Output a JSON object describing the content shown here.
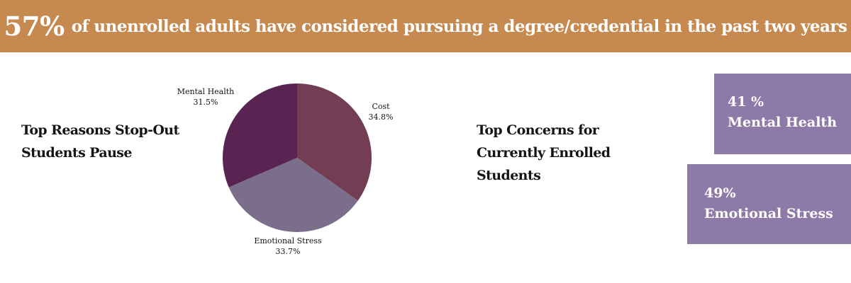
{
  "colors": {
    "banner": "#c68a50",
    "card": "#8d7aa9",
    "slices": [
      "#733d54",
      "#7a6e8a",
      "#5a2452"
    ]
  },
  "banner": {
    "big": "57%",
    "rest": "of unenrolled adults have considered pursuing a degree/credential in the past two years"
  },
  "reasons_heading": [
    "Top Reasons Stop-Out",
    "Students Pause"
  ],
  "concerns_heading": [
    "Top Concerns for",
    "Currently Enrolled",
    "Students"
  ],
  "cards": [
    {
      "value": "41 %",
      "label": "Mental Health"
    },
    {
      "value": "49%",
      "label": "Emotional Stress"
    }
  ],
  "chart_data": {
    "type": "pie",
    "title": "",
    "slices": [
      {
        "label": "Cost",
        "value": 34.8,
        "value_text": "34.8%"
      },
      {
        "label": "Emotional Stress",
        "value": 33.7,
        "value_text": "33.7%"
      },
      {
        "label": "Mental Health",
        "value": 31.5,
        "value_text": "31.5%"
      }
    ],
    "start_angle_deg": 0,
    "direction": "clockwise",
    "legend": "none"
  }
}
